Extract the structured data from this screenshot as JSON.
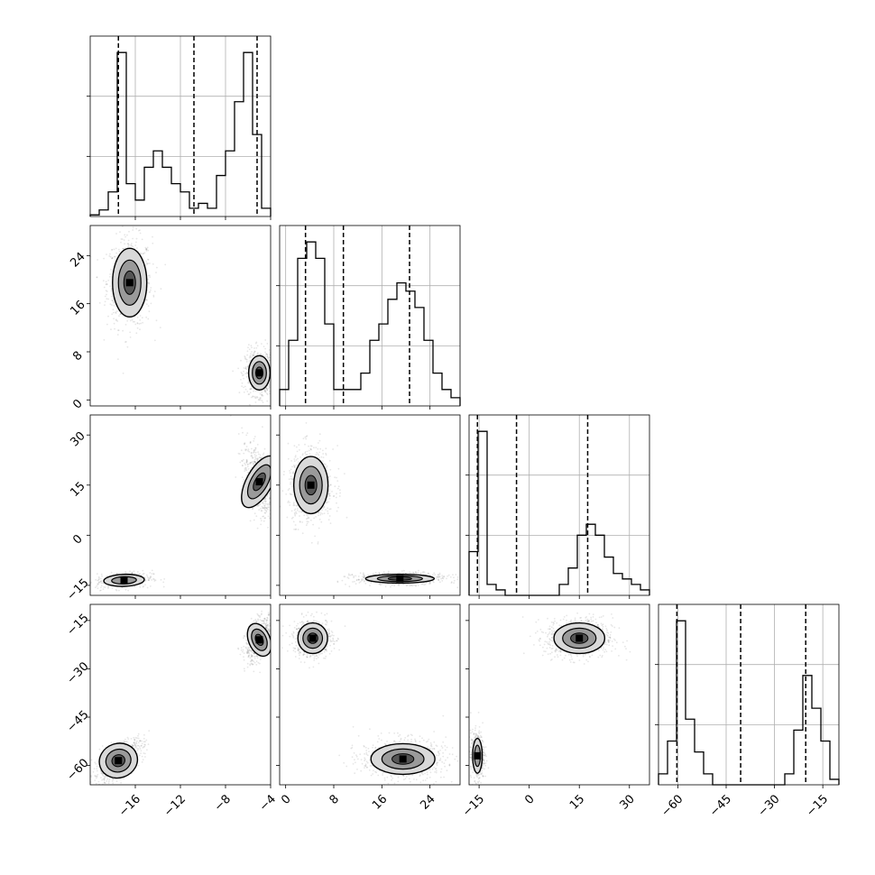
{
  "chart_data": {
    "type": "corner",
    "description_note": "",
    "params": [
      {
        "ticks": [
          -16,
          -12,
          -8,
          -4
        ],
        "range": [
          -20.0,
          -4.0
        ],
        "quantiles": [
          -17.5,
          -10.8,
          -5.2
        ],
        "hist_counts": [
          1,
          4,
          15,
          100,
          20,
          10,
          30,
          40,
          30,
          20,
          15,
          5,
          8,
          5,
          25,
          40,
          70,
          100,
          50,
          5
        ]
      },
      {
        "ticks": [
          0,
          8,
          16,
          24
        ],
        "range": [
          -1.0,
          29.0
        ],
        "quantiles": [
          3.3,
          9.6,
          20.6
        ],
        "hist_counts": [
          2,
          8,
          18,
          20,
          18,
          10,
          2,
          2,
          2,
          4,
          8,
          10,
          13,
          15,
          14,
          12,
          8,
          4,
          2,
          1
        ]
      },
      {
        "ticks": [
          -15,
          0,
          15,
          30
        ],
        "range": [
          -18.0,
          36.0
        ],
        "quantiles": [
          -15.5,
          -3.8,
          17.5
        ],
        "hist_counts": [
          8,
          30,
          2,
          1,
          0,
          0,
          0,
          0,
          0,
          0,
          2,
          5,
          11,
          13,
          11,
          7,
          4,
          3,
          2,
          1
        ]
      },
      {
        "ticks": [
          -60,
          -45,
          -30,
          -15
        ],
        "range": [
          -66.0,
          -10.0
        ],
        "quantiles": [
          -60.3,
          -40.5,
          -20.3
        ],
        "hist_counts": [
          2,
          8,
          30,
          12,
          6,
          2,
          0,
          0,
          0,
          0,
          0,
          0,
          0,
          0,
          2,
          10,
          20,
          14,
          8,
          1
        ]
      }
    ],
    "pairs": [
      {
        "row": 1,
        "col": 0,
        "clusters": [
          {
            "mx": -16.5,
            "my": 19.5,
            "sx": 0.8,
            "sy": 3.0,
            "rho": 0,
            "n": 700,
            "inner": true
          },
          {
            "mx": -5.0,
            "my": 4.5,
            "sx": 0.5,
            "sy": 1.5,
            "rho": 0,
            "n": 700,
            "inner": true
          }
        ]
      },
      {
        "row": 2,
        "col": 0,
        "clusters": [
          {
            "mx": -17.0,
            "my": -13.5,
            "sx": 1.0,
            "sy": 1.0,
            "rho": 0.2,
            "n": 400,
            "inner": false
          },
          {
            "mx": -5.0,
            "my": 16.0,
            "sx": 0.6,
            "sy": 4.5,
            "rho": -0.5,
            "n": 600,
            "inner": true
          }
        ]
      },
      {
        "row": 2,
        "col": 1,
        "clusters": [
          {
            "mx": 4.2,
            "my": 15.0,
            "sx": 1.5,
            "sy": 4.5,
            "rho": 0,
            "n": 700,
            "inner": true
          },
          {
            "mx": 19.0,
            "my": -13.0,
            "sx": 3.0,
            "sy": 0.7,
            "rho": 0,
            "n": 700,
            "inner": true
          }
        ]
      },
      {
        "row": 3,
        "col": 0,
        "clusters": [
          {
            "mx": -17.5,
            "my": -58.5,
            "sx": 0.9,
            "sy": 2.8,
            "rho": 0.7,
            "n": 600,
            "inner": true
          },
          {
            "mx": -5.0,
            "my": -21.0,
            "sx": 0.5,
            "sy": 2.8,
            "rho": 0.5,
            "n": 600,
            "inner": true
          }
        ]
      },
      {
        "row": 3,
        "col": 1,
        "clusters": [
          {
            "mx": 4.5,
            "my": -20.5,
            "sx": 1.3,
            "sy": 2.5,
            "rho": 0,
            "n": 600,
            "inner": true
          },
          {
            "mx": 19.5,
            "my": -58.0,
            "sx": 2.8,
            "sy": 2.5,
            "rho": 0,
            "n": 700,
            "inner": true
          }
        ]
      },
      {
        "row": 3,
        "col": 2,
        "clusters": [
          {
            "mx": 15.0,
            "my": -20.5,
            "sx": 4.0,
            "sy": 2.5,
            "rho": 0,
            "n": 800,
            "inner": true
          },
          {
            "mx": -15.5,
            "my": -57.0,
            "sx": 0.8,
            "sy": 3.0,
            "rho": 0,
            "n": 500,
            "inner": false
          }
        ]
      }
    ]
  }
}
